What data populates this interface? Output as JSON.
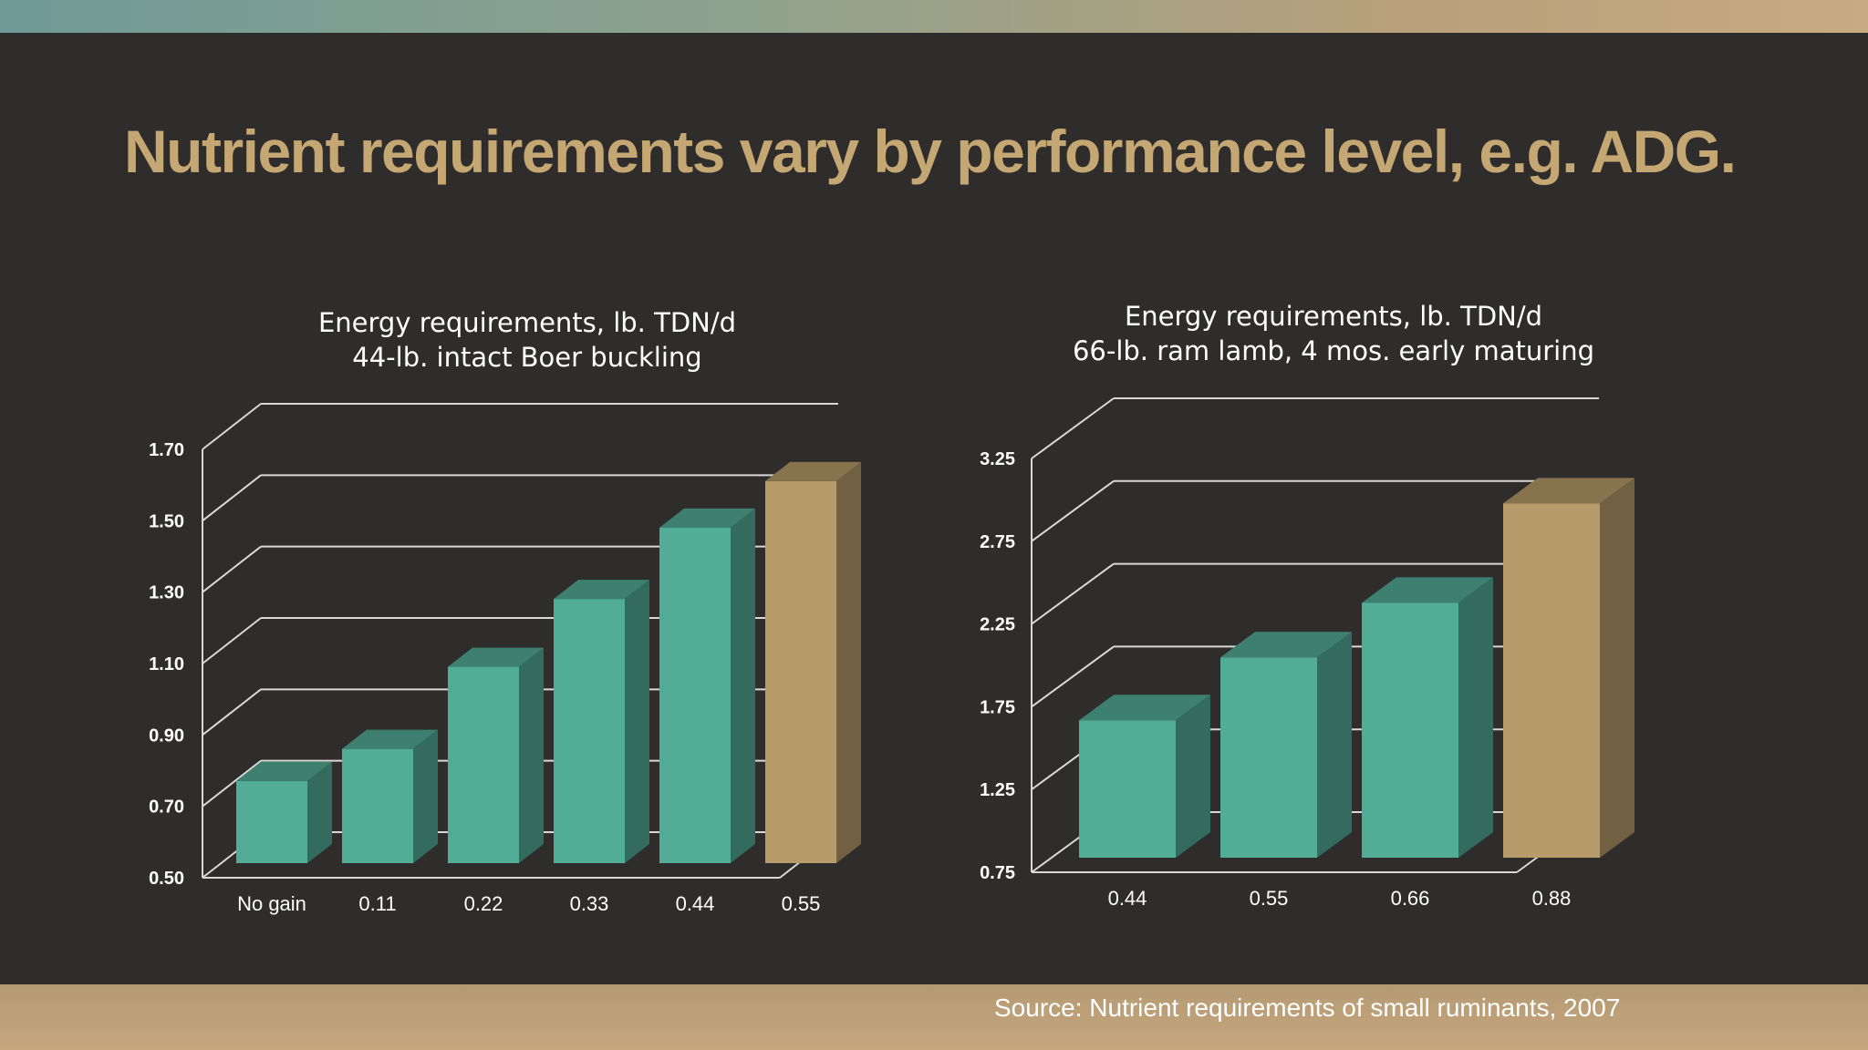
{
  "slide_title": "Nutrient requirements vary by performance level, e.g. ADG.",
  "source": "Source:  Nutrient requirements of small ruminants, 2007",
  "colors": {
    "background": "#2f2d2b",
    "title": "#c4a772",
    "bar_teal": "#52ad97",
    "bar_gold": "#b89b6b",
    "gridline": "#d8d8d8",
    "text": "#ffffff"
  },
  "chart_data": [
    {
      "type": "bar",
      "title_lines": [
        "Energy requirements, lb. TDN/d",
        "44-lb. intact Boer buckling"
      ],
      "categories": [
        "No gain",
        "0.11",
        "0.22",
        "0.33",
        "0.44",
        "0.55"
      ],
      "values": [
        0.73,
        0.82,
        1.05,
        1.24,
        1.44,
        1.57
      ],
      "highlight_last": true,
      "ylim": [
        0.5,
        1.7
      ],
      "yticks": [
        "0.50",
        "0.70",
        "0.90",
        "1.10",
        "1.30",
        "1.50",
        "1.70"
      ],
      "ytick_values": [
        0.5,
        0.7,
        0.9,
        1.1,
        1.3,
        1.5,
        1.7
      ],
      "grid": true,
      "style": "3d-column"
    },
    {
      "type": "bar",
      "title_lines": [
        "Energy requirements, lb. TDN/d",
        "66-lb. ram lamb, 4 mos. early maturing"
      ],
      "categories": [
        "0.44",
        "0.55",
        "0.66",
        "0.88"
      ],
      "values": [
        1.58,
        1.96,
        2.29,
        2.89
      ],
      "highlight_last": true,
      "ylim": [
        0.75,
        3.25
      ],
      "yticks": [
        "0.75",
        "1.25",
        "1.75",
        "2.25",
        "2.75",
        "3.25"
      ],
      "ytick_values": [
        0.75,
        1.25,
        1.75,
        2.25,
        2.75,
        3.25
      ],
      "grid": true,
      "style": "3d-column"
    }
  ]
}
